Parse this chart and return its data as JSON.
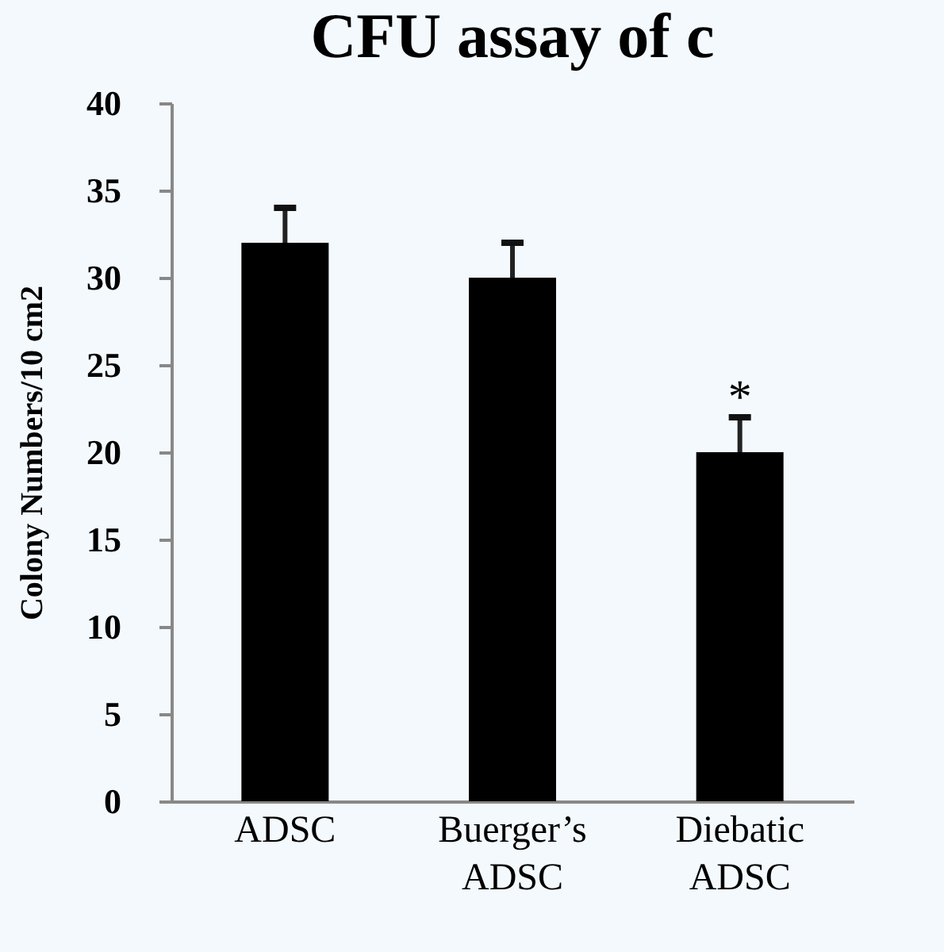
{
  "chart_data": {
    "type": "bar",
    "title": "CFU assay of c",
    "ylabel": "Colony Numbers/10 cm2",
    "categories": [
      "ADSC",
      "Buerger’s ADSC",
      "Diebatic ADSC"
    ],
    "values": [
      32,
      30,
      20
    ],
    "errors": [
      [
        32,
        34
      ],
      [
        30,
        32
      ],
      [
        20,
        22
      ]
    ],
    "color": "#000000",
    "ylim": [
      0,
      40
    ],
    "yticks": [
      0,
      5,
      10,
      15,
      20,
      25,
      30,
      35,
      40
    ],
    "annotations": [
      {
        "text": "*",
        "x": "Diebatic ADSC",
        "y": 22
      }
    ]
  }
}
